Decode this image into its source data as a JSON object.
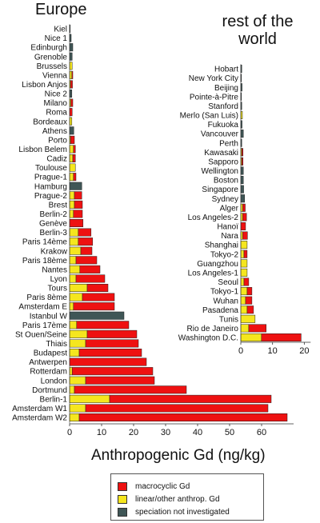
{
  "chart_data": [
    {
      "type": "bar",
      "orientation": "horizontal",
      "stacked": true,
      "title": "Europe",
      "xlabel": "Anthropogenic Gd (ng/kg)",
      "xlim": [
        0,
        70
      ],
      "xticks": [
        "0",
        "10",
        "20",
        "30",
        "40",
        "50",
        "60"
      ],
      "categories": [
        "Kiel",
        "Nice 1",
        "Edinburgh",
        "Grenoble",
        "Brussels",
        "Vienna",
        "Lisbon Anjos",
        "Nice 2",
        "Milano",
        "Roma",
        "Bordeaux",
        "Athens",
        "Porto",
        "Lisbon Belem",
        "Cadiz",
        "Toulouse",
        "Prague-1",
        "Hamburg",
        "Prague-2",
        "Brest",
        "Berlin-2",
        "Genève",
        "Berlin-3",
        "Paris 14ème",
        "Krakow",
        "Paris 18ème",
        "Nantes",
        "Lyon",
        "Tours",
        "Paris 8ème",
        "Amsterdam E",
        "Istanbul W",
        "Paris 17ème",
        "St Ouen/Seine",
        "Thiais",
        "Budapest",
        "Antwerpen",
        "Rotterdam",
        "London",
        "Dortmund",
        "Berlin-1",
        "Amsterdam W1",
        "Amsterdam W2"
      ],
      "series": [
        {
          "name": "linear/other anthrop. Gd",
          "values": [
            0,
            0,
            0,
            0,
            0.8,
            0.7,
            0.3,
            0,
            0.4,
            0,
            0.7,
            0,
            0.3,
            1.2,
            1.0,
            1.8,
            1.2,
            0,
            1.5,
            1.5,
            1.2,
            0,
            2.7,
            2.7,
            3.5,
            2.0,
            3.2,
            2.0,
            5.5,
            4.0,
            1.2,
            0,
            2.2,
            5.5,
            5.0,
            3.0,
            0,
            0.8,
            5.0,
            1.5,
            12.5,
            5.0,
            3.0
          ]
        },
        {
          "name": "macrocyclic Gd",
          "values": [
            0,
            0,
            0,
            0,
            0,
            0.3,
            0.6,
            0,
            0.6,
            0.8,
            0,
            0,
            1.2,
            0.6,
            0.8,
            0,
            0.8,
            0,
            2.3,
            2.5,
            2.8,
            4.2,
            4.0,
            4.5,
            3.5,
            6.5,
            6.3,
            9.0,
            6.5,
            10.0,
            12.8,
            0,
            16.3,
            15.5,
            16.5,
            19.5,
            24.0,
            25.2,
            21.5,
            35.0,
            50.5,
            57.0,
            65.0
          ]
        },
        {
          "name": "speciation not investigated",
          "values": [
            0.2,
            0.5,
            1.0,
            0.8,
            0,
            0,
            0,
            0.7,
            0,
            0,
            0,
            1.3,
            0,
            0,
            0,
            0,
            0,
            3.8,
            0,
            0,
            0,
            0,
            0,
            0,
            0,
            0,
            0,
            0,
            0,
            0,
            0,
            17.0,
            0,
            0,
            0,
            0,
            0,
            0,
            0,
            0,
            0,
            0,
            0
          ]
        }
      ]
    },
    {
      "type": "bar",
      "orientation": "horizontal",
      "stacked": true,
      "title": "rest of the world",
      "xlim": [
        0,
        22
      ],
      "xticks": [
        "0",
        "10",
        "20"
      ],
      "categories": [
        "Hobart",
        "New York City",
        "Beijing",
        "Pointe-à-Pitre",
        "Stanford",
        "Merlo (San Luis)",
        "Fukuoka",
        "Vancouver",
        "Perth",
        "Kawasaki",
        "Sapporo",
        "Wellington",
        "Boston",
        "Singapore",
        "Sydney",
        "Alger",
        "Los Angeles-2",
        "Hanoï",
        "Nara",
        "Shanghai",
        "Tokyo-2",
        "Guangzhou",
        "Los Angeles-1",
        "Seoul",
        "Tokyo-1",
        "Wuhan",
        "Pasadena",
        "Tunis",
        "Rio de Janeiro",
        "Washington D.C."
      ],
      "series": [
        {
          "name": "linear/other anthrop. Gd",
          "values": [
            0,
            0,
            0,
            0,
            0,
            0.5,
            0,
            0,
            0,
            0.3,
            0.3,
            0,
            0,
            0,
            0,
            0.6,
            0.6,
            0,
            0.6,
            2.0,
            1.0,
            2.0,
            2.0,
            1.0,
            2.0,
            1.5,
            2.0,
            4.5,
            2.5,
            6.5
          ]
        },
        {
          "name": "macrocyclic Gd",
          "values": [
            0,
            0,
            0,
            0,
            0,
            0,
            0,
            0,
            0,
            0.4,
            0.4,
            0,
            0,
            0,
            0,
            0.8,
            1.2,
            1.5,
            1.5,
            0,
            1.0,
            0,
            0,
            1.5,
            1.5,
            2.0,
            2.0,
            0,
            5.5,
            12.5
          ]
        },
        {
          "name": "speciation not investigated",
          "values": [
            0.3,
            0.2,
            0.4,
            0.2,
            0.3,
            0,
            0.4,
            0.8,
            0.3,
            0,
            0,
            0.8,
            0.8,
            0.9,
            1.2,
            0,
            0,
            0,
            0,
            0,
            0,
            0,
            0,
            0,
            0,
            0,
            0,
            0,
            0,
            0
          ]
        }
      ]
    }
  ],
  "legend": {
    "items": [
      {
        "label": "macrocyclic Gd",
        "color": "#ee1111"
      },
      {
        "label": "linear/other anthrop. Gd",
        "color": "#f5e61e"
      },
      {
        "label": "speciation not investigated",
        "color": "#3f5656"
      }
    ]
  },
  "colors": {
    "linear/other anthrop. Gd": "#f5e61e",
    "macrocyclic Gd": "#ee1111",
    "speciation not investigated": "#3f5656"
  }
}
